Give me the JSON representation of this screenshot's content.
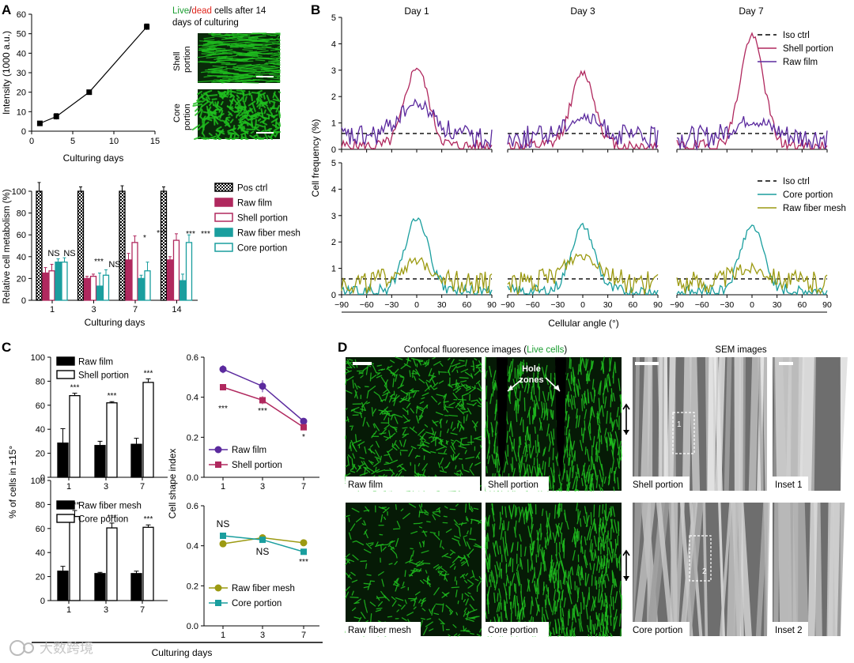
{
  "panels": {
    "A": "A",
    "B": "B",
    "C": "C",
    "D": "D"
  },
  "panel_a": {
    "micro_title": {
      "live": "Live",
      "slash": "/",
      "dead": "dead",
      "rest": " cells after 14",
      "line2": "days of culturing"
    },
    "micro_labels": {
      "shell_1": "Shell",
      "shell_2": "portion",
      "core_1": "Core",
      "core_2": "portion"
    }
  },
  "panel_b": {
    "day_titles": [
      "Day 1",
      "Day 3",
      "Day 7"
    ],
    "xlabel": "Cellular angle (°)",
    "ylabel": "Cell frequency (%)"
  },
  "panel_d": {
    "confocal_title_a": "Confocal fluoresence images (",
    "confocal_title_b": "Live cells",
    "confocal_title_c": ")",
    "sem_title": "SEM images",
    "hole_zones_1": "Hole",
    "hole_zones_2": "zones",
    "captions": [
      "Raw film",
      "Shell portion",
      "Shell portion",
      "Inset 1",
      "Raw fiber mesh",
      "Core portion",
      "Core portion",
      "Inset 2"
    ],
    "inset_marks": [
      "1",
      "2"
    ]
  },
  "watermark": "大数跨境",
  "colors": {
    "raw_film": "#5b2a9e",
    "shell": "#b0285e",
    "core": "#1a9e9e",
    "raw_fiber": "#9c9a12",
    "green": "#1fbf1f",
    "red": "#e0261d"
  },
  "chart_data": [
    {
      "id": "A-top",
      "type": "line",
      "xlabel": "Culturing days",
      "ylabel": "Intensity (1000 a.u.)",
      "x": [
        1,
        3,
        7,
        14
      ],
      "y": [
        4,
        7.5,
        20,
        53.5
      ],
      "yerr": [
        0.8,
        1.5,
        1,
        1.5
      ],
      "xlim": [
        0,
        15
      ],
      "ylim": [
        0,
        60
      ],
      "xticks": [
        "0",
        "5",
        "10",
        "15"
      ],
      "yticks": [
        "0",
        "10",
        "20",
        "30",
        "40",
        "50",
        "60"
      ]
    },
    {
      "id": "A-bottom",
      "type": "bar",
      "xlabel": "Culturing days",
      "ylabel": "Relative cell metabolism (%)",
      "categories": [
        "1",
        "3",
        "7",
        "14"
      ],
      "ylim": [
        0,
        100
      ],
      "yticks": [
        "0",
        "20",
        "40",
        "60",
        "80",
        "100"
      ],
      "series": [
        {
          "name": "Pos ctrl",
          "values": [
            100,
            100,
            100,
            100
          ],
          "errors": [
            8,
            4,
            5,
            4
          ]
        },
        {
          "name": "Raw film",
          "values": [
            25,
            20,
            37,
            37
          ],
          "errors": [
            5,
            2,
            6,
            3
          ]
        },
        {
          "name": "Shell portion",
          "values": [
            27,
            22,
            53,
            55
          ],
          "errors": [
            6,
            2,
            6,
            6
          ]
        },
        {
          "name": "Raw fiber mesh",
          "values": [
            35,
            13,
            20,
            18
          ],
          "errors": [
            3,
            12,
            3,
            6
          ]
        },
        {
          "name": "Core portion",
          "values": [
            35,
            23,
            27,
            53
          ],
          "errors": [
            4,
            5,
            8,
            7
          ]
        }
      ],
      "annotations": [
        "NS",
        "NS",
        "***",
        "NS",
        "*",
        "***",
        "***",
        "***"
      ]
    },
    {
      "id": "B-top",
      "type": "line",
      "xlabel": "Cellular angle (°)",
      "ylabel": "Cell frequency (%)",
      "facets": [
        "Day 1",
        "Day 3",
        "Day 7"
      ],
      "ylim": [
        0,
        5
      ],
      "yticks": [
        "0",
        "1",
        "2",
        "3",
        "4",
        "5"
      ],
      "series": [
        {
          "name": "Iso ctrl",
          "value": 0.6
        },
        {
          "name": "Shell portion",
          "peaks": [
            3.1,
            2.9,
            4.3
          ]
        },
        {
          "name": "Raw film",
          "peaks": [
            1.7,
            1.2,
            1.1
          ]
        }
      ]
    },
    {
      "id": "B-bottom",
      "type": "line",
      "xlabel": "Cellular angle (°)",
      "ylabel": "Cell frequency (%)",
      "facets": [
        "Day 1",
        "Day 3",
        "Day 7"
      ],
      "ylim": [
        0,
        5
      ],
      "yticks": [
        "0",
        "1",
        "2",
        "3",
        "4",
        "5"
      ],
      "xticks": [
        "−90",
        "−60",
        "−30",
        "0",
        "30",
        "60",
        "90"
      ],
      "series": [
        {
          "name": "Iso ctrl",
          "value": 0.6
        },
        {
          "name": "Core portion",
          "peaks": [
            2.9,
            2.6,
            2.6
          ]
        },
        {
          "name": "Raw fiber mesh",
          "peaks": [
            1.2,
            1.5,
            1.0
          ]
        }
      ]
    },
    {
      "id": "C-left-top",
      "type": "bar",
      "xlabel": "Culturing days",
      "ylabel": "% of cells in ±15°",
      "categories": [
        "1",
        "3",
        "7"
      ],
      "ylim": [
        0,
        100
      ],
      "yticks": [
        "0",
        "20",
        "40",
        "60",
        "80",
        "100"
      ],
      "series": [
        {
          "name": "Raw film",
          "values": [
            28.5,
            26.5,
            27.5
          ],
          "errors": [
            12,
            3.5,
            5
          ]
        },
        {
          "name": "Shell portion",
          "values": [
            68,
            62,
            79
          ],
          "errors": [
            2,
            1,
            3
          ]
        }
      ],
      "annotations": [
        "***",
        "***",
        "***"
      ]
    },
    {
      "id": "C-left-bottom",
      "type": "bar",
      "xlabel": "Culturing days",
      "ylabel": "% of cells in ±15°",
      "categories": [
        "1",
        "3",
        "7"
      ],
      "ylim": [
        0,
        100
      ],
      "yticks": [
        "0",
        "20",
        "40",
        "60",
        "80",
        "100"
      ],
      "series": [
        {
          "name": "Raw fiber mesh",
          "values": [
            24.5,
            22.5,
            22.5
          ],
          "errors": [
            4,
            1,
            2
          ]
        },
        {
          "name": "Core portion",
          "values": [
            70,
            60.5,
            61
          ],
          "errors": [
            5,
            4,
            2
          ]
        }
      ],
      "annotations": [
        "***",
        "***",
        "***"
      ]
    },
    {
      "id": "C-right-top",
      "type": "line",
      "xlabel": "Culturing days",
      "ylabel": "Cell shape index",
      "categories": [
        "1",
        "3",
        "7"
      ],
      "ylim": [
        0,
        0.6
      ],
      "yticks": [
        "0.0",
        "0.2",
        "0.4",
        "0.6"
      ],
      "series": [
        {
          "name": "Raw film",
          "values": [
            0.54,
            0.455,
            0.28
          ],
          "errors": [
            0.02,
            0.03,
            0.01
          ]
        },
        {
          "name": "Shell portion",
          "values": [
            0.45,
            0.385,
            0.25
          ],
          "errors": [
            0.01,
            0.02,
            0.01
          ]
        }
      ],
      "annotations": [
        "***",
        "***",
        "*"
      ]
    },
    {
      "id": "C-right-bottom",
      "type": "line",
      "xlabel": "Culturing days",
      "ylabel": "Cell shape index",
      "categories": [
        "1",
        "3",
        "7"
      ],
      "ylim": [
        0,
        0.6
      ],
      "yticks": [
        "0.0",
        "0.2",
        "0.4",
        "0.6"
      ],
      "series": [
        {
          "name": "Raw fiber mesh",
          "values": [
            0.41,
            0.44,
            0.415
          ],
          "errors": [
            0.01,
            0.01,
            0.01
          ]
        },
        {
          "name": "Core portion",
          "values": [
            0.45,
            0.43,
            0.37
          ],
          "errors": [
            0.01,
            0.01,
            0.01
          ]
        }
      ],
      "annotations": [
        "NS",
        "NS",
        "***"
      ]
    }
  ]
}
